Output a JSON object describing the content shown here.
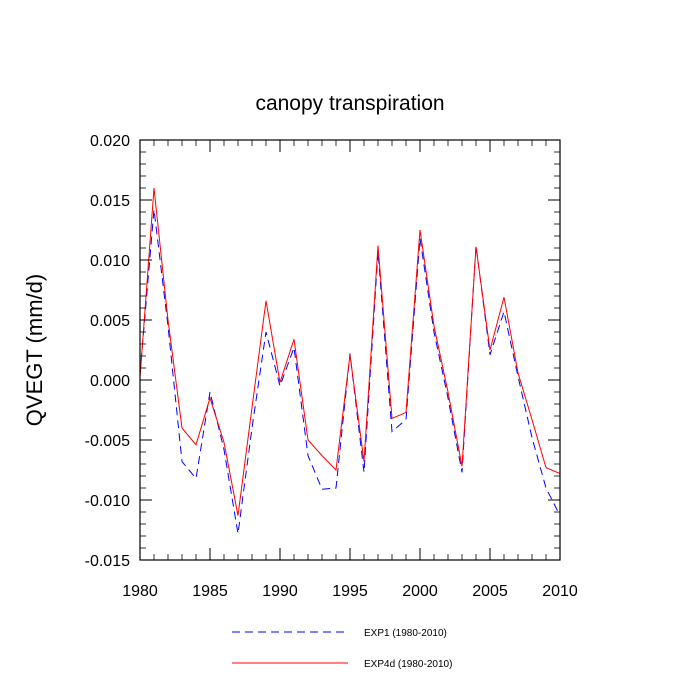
{
  "chart_data": {
    "type": "line",
    "title": "canopy transpiration",
    "xlabel": "",
    "ylabel": "QVEGT  (mm/d)",
    "xlim": [
      1980,
      2010
    ],
    "ylim": [
      -0.015,
      0.02
    ],
    "xticks": [
      1980,
      1985,
      1990,
      1995,
      2000,
      2005,
      2010
    ],
    "xtick_labels": [
      "1980",
      "1985",
      "1990",
      "1995",
      "2000",
      "2005",
      "2010"
    ],
    "yticks": [
      -0.015,
      -0.01,
      -0.005,
      0.0,
      0.005,
      0.01,
      0.015,
      0.02
    ],
    "ytick_labels": [
      "-0.015",
      "-0.010",
      "-0.005",
      "0.000",
      "0.005",
      "0.010",
      "0.015",
      "0.020"
    ],
    "grid": false,
    "legend_position": "bottom",
    "x": [
      1980,
      1981,
      1982,
      1983,
      1984,
      1985,
      1986,
      1987,
      1988,
      1989,
      1990,
      1991,
      1992,
      1993,
      1994,
      1995,
      1996,
      1997,
      1998,
      1999,
      2000,
      2001,
      2002,
      2003,
      2004,
      2005,
      2006,
      2007,
      2008,
      2009,
      2010
    ],
    "series": [
      {
        "name": "EXP1 (1980-2010)",
        "color": "#0000ff",
        "style": "dashed",
        "values": [
          0.0005,
          0.0142,
          0.0045,
          -0.0068,
          -0.0082,
          -0.001,
          -0.0058,
          -0.0128,
          -0.004,
          0.004,
          -0.0005,
          0.0027,
          -0.0063,
          -0.0091,
          -0.009,
          0.0022,
          -0.0077,
          0.0107,
          -0.0043,
          -0.0033,
          0.0118,
          0.004,
          -0.0015,
          -0.0077,
          0.0112,
          0.0021,
          0.0057,
          0.0003,
          -0.0048,
          -0.009,
          -0.0113
        ]
      },
      {
        "name": "EXP4d (1980-2010)",
        "color": "#ff0000",
        "style": "solid",
        "values": [
          0.0002,
          0.016,
          0.005,
          -0.004,
          -0.0054,
          -0.0015,
          -0.0052,
          -0.0113,
          -0.0023,
          0.0066,
          -0.0002,
          0.0034,
          -0.005,
          -0.0063,
          -0.0075,
          0.0021,
          -0.0068,
          0.0112,
          -0.0032,
          -0.0027,
          0.0125,
          0.0045,
          -0.001,
          -0.0072,
          0.0111,
          0.0025,
          0.0069,
          0.0006,
          -0.0033,
          -0.0073,
          -0.0078
        ]
      }
    ]
  }
}
